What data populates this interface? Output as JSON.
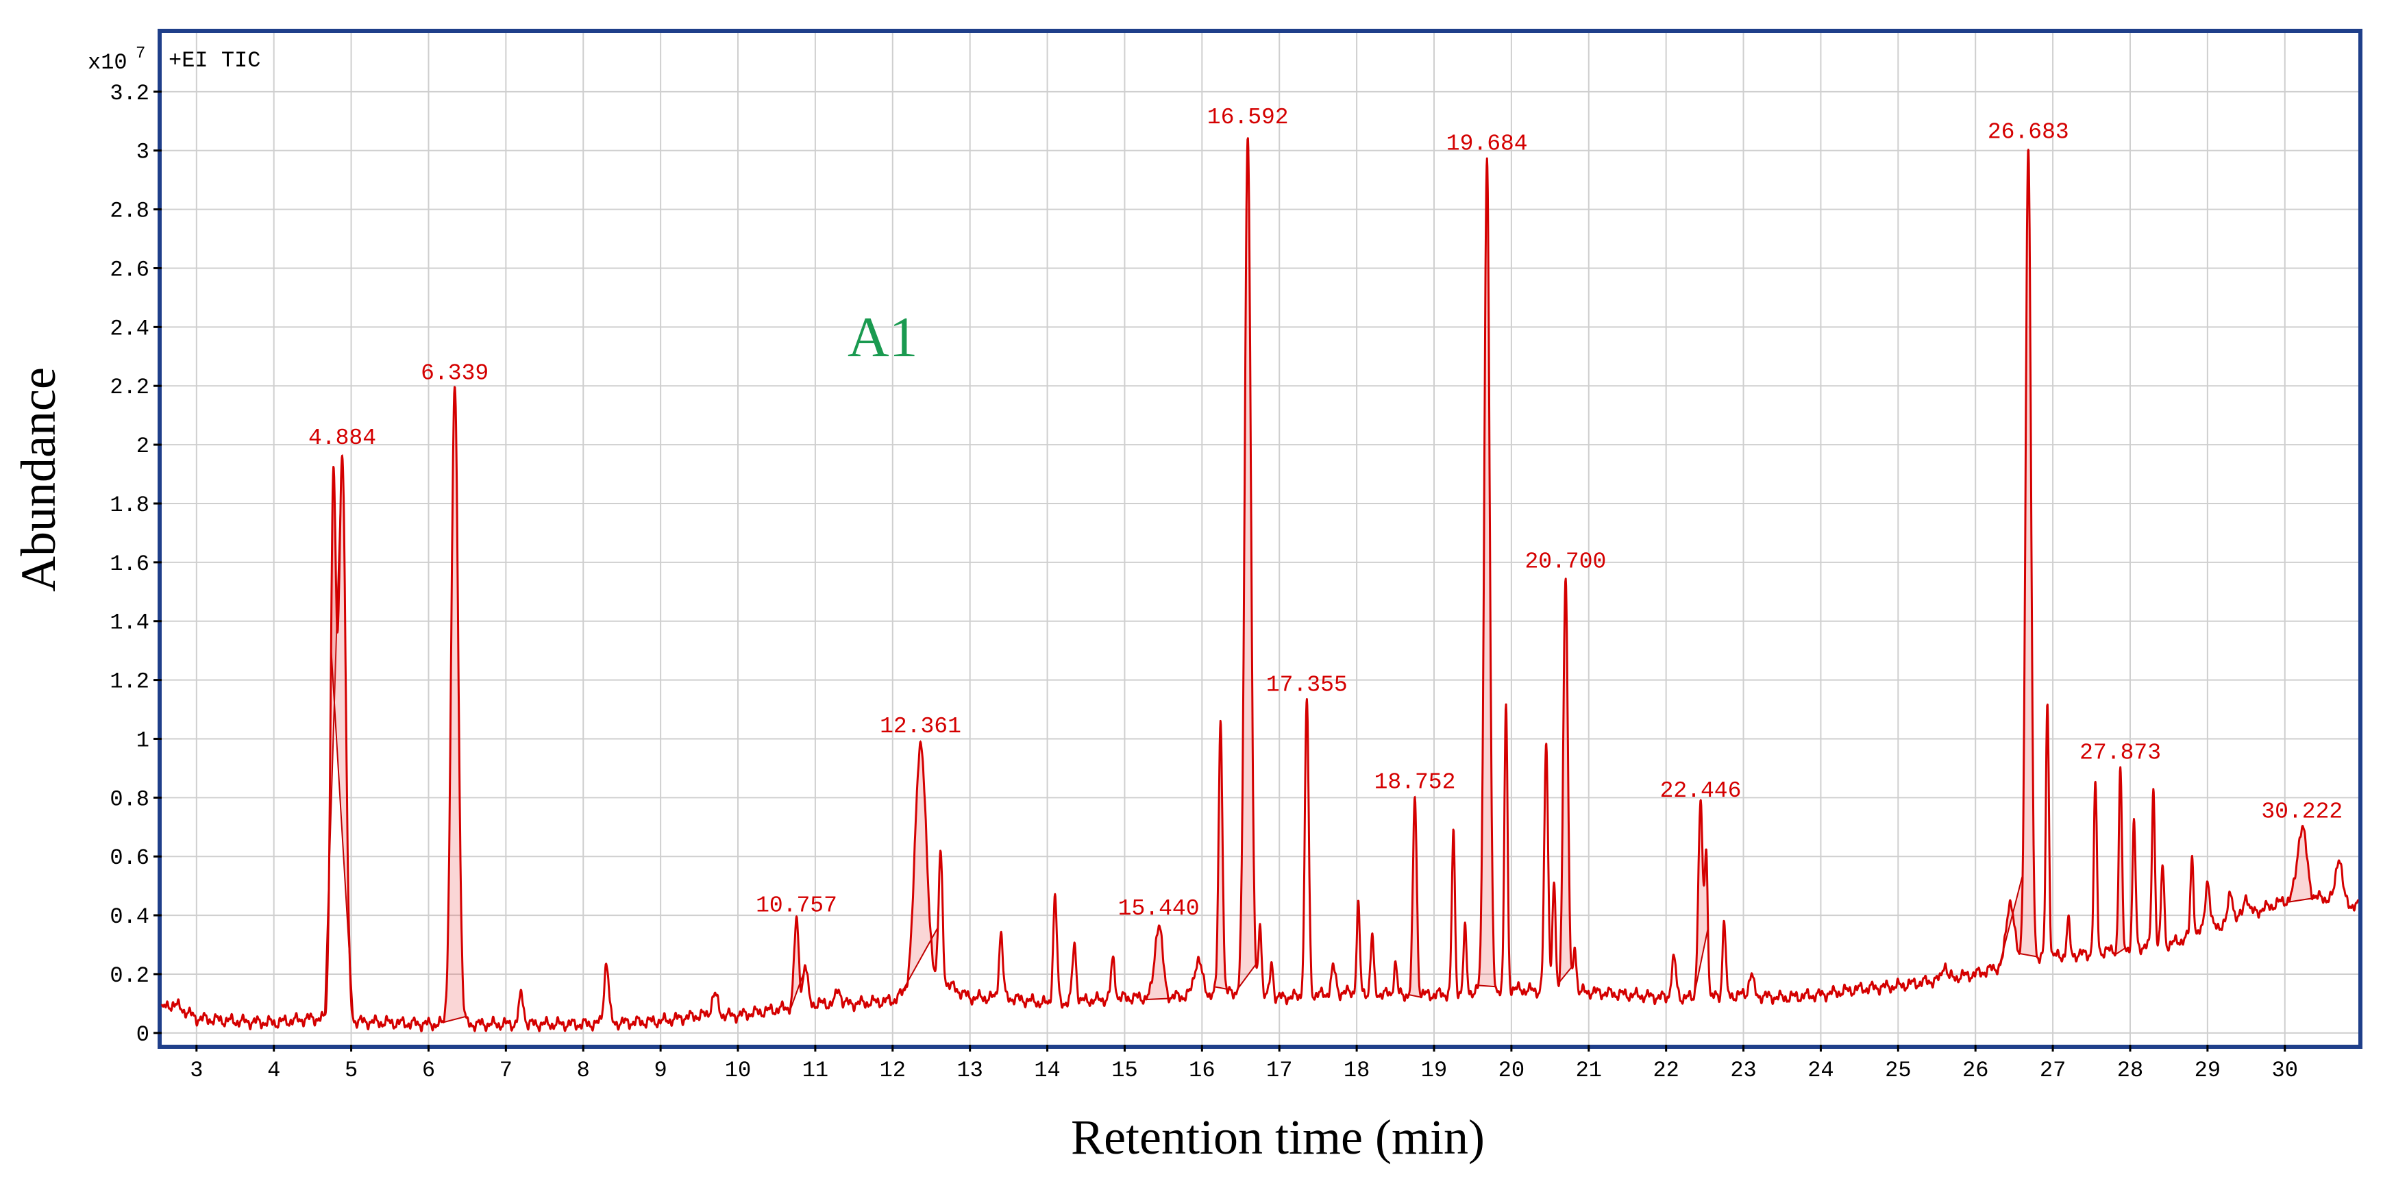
{
  "chart_data": {
    "type": "line",
    "title": "+EI  TIC",
    "exponent_label": "x10",
    "exponent_power": "7",
    "xlabel": "Retention time (min)",
    "ylabel": "Abundance",
    "annotation": "A1",
    "xlim": [
      2.55,
      30.95
    ],
    "ylim": [
      -0.04,
      3.4
    ],
    "x_ticks": [
      3,
      4,
      5,
      6,
      7,
      8,
      9,
      10,
      11,
      12,
      13,
      14,
      15,
      16,
      17,
      18,
      19,
      20,
      21,
      22,
      23,
      24,
      25,
      26,
      27,
      28,
      29,
      30
    ],
    "y_ticks": [
      0,
      0.2,
      0.4,
      0.6,
      0.8,
      1,
      1.2,
      1.4,
      1.6,
      1.8,
      2,
      2.2,
      2.4,
      2.6,
      2.8,
      3,
      3.2
    ],
    "y_tick_labels": [
      "0",
      "0.2",
      "0.4",
      "0.6",
      "0.8",
      "1",
      "1.2",
      "1.4",
      "1.6",
      "1.8",
      "2",
      "2.2",
      "2.4",
      "2.6",
      "2.8",
      "3",
      "3.2"
    ],
    "grid": true,
    "baseline": [
      [
        2.55,
        0.08
      ],
      [
        2.7,
        0.1
      ],
      [
        3.0,
        0.05
      ],
      [
        3.5,
        0.04
      ],
      [
        4.0,
        0.035
      ],
      [
        4.5,
        0.05
      ],
      [
        5.0,
        0.04
      ],
      [
        5.5,
        0.035
      ],
      [
        6.0,
        0.03
      ],
      [
        7.0,
        0.03
      ],
      [
        8.0,
        0.03
      ],
      [
        9.0,
        0.04
      ],
      [
        9.5,
        0.06
      ],
      [
        10.0,
        0.06
      ],
      [
        10.5,
        0.08
      ],
      [
        11.0,
        0.1
      ],
      [
        11.5,
        0.1
      ],
      [
        12.0,
        0.11
      ],
      [
        12.5,
        0.2
      ],
      [
        13.0,
        0.12
      ],
      [
        13.5,
        0.12
      ],
      [
        14.0,
        0.1
      ],
      [
        14.5,
        0.11
      ],
      [
        15.0,
        0.12
      ],
      [
        15.5,
        0.12
      ],
      [
        16.0,
        0.13
      ],
      [
        16.5,
        0.14
      ],
      [
        17.0,
        0.12
      ],
      [
        17.5,
        0.13
      ],
      [
        18.0,
        0.14
      ],
      [
        18.5,
        0.13
      ],
      [
        19.0,
        0.13
      ],
      [
        19.5,
        0.14
      ],
      [
        20.0,
        0.15
      ],
      [
        20.5,
        0.14
      ],
      [
        21.0,
        0.14
      ],
      [
        21.5,
        0.13
      ],
      [
        22.0,
        0.12
      ],
      [
        22.5,
        0.12
      ],
      [
        23.0,
        0.13
      ],
      [
        23.5,
        0.12
      ],
      [
        24.0,
        0.13
      ],
      [
        24.5,
        0.15
      ],
      [
        25.0,
        0.16
      ],
      [
        25.5,
        0.18
      ],
      [
        26.0,
        0.2
      ],
      [
        26.5,
        0.24
      ],
      [
        27.0,
        0.26
      ],
      [
        27.5,
        0.27
      ],
      [
        28.0,
        0.29
      ],
      [
        28.5,
        0.3
      ],
      [
        29.0,
        0.35
      ],
      [
        29.5,
        0.4
      ],
      [
        30.0,
        0.45
      ],
      [
        30.5,
        0.46
      ],
      [
        30.95,
        0.43
      ]
    ],
    "peaks": [
      {
        "rt": 4.769,
        "height": 1.83,
        "width": 0.035,
        "filled": true
      },
      {
        "rt": 4.884,
        "height": 1.97,
        "width": 0.045,
        "label": "4.884",
        "filled": true
      },
      {
        "rt": 6.339,
        "height": 2.19,
        "width": 0.045,
        "label": "6.339",
        "filled": true
      },
      {
        "rt": 7.2,
        "height": 0.13,
        "width": 0.03
      },
      {
        "rt": 8.3,
        "height": 0.24,
        "width": 0.03
      },
      {
        "rt": 9.7,
        "height": 0.13,
        "width": 0.04
      },
      {
        "rt": 10.757,
        "height": 0.38,
        "width": 0.03,
        "label": "10.757",
        "filled": true
      },
      {
        "rt": 10.87,
        "height": 0.23,
        "width": 0.03
      },
      {
        "rt": 11.3,
        "height": 0.15,
        "width": 0.03
      },
      {
        "rt": 12.361,
        "height": 0.99,
        "width": 0.07,
        "label": "12.361",
        "filled": true
      },
      {
        "rt": 12.62,
        "height": 0.61,
        "width": 0.025
      },
      {
        "rt": 13.4,
        "height": 0.34,
        "width": 0.025
      },
      {
        "rt": 14.1,
        "height": 0.46,
        "width": 0.025
      },
      {
        "rt": 14.35,
        "height": 0.3,
        "width": 0.025
      },
      {
        "rt": 14.85,
        "height": 0.25,
        "width": 0.025
      },
      {
        "rt": 15.44,
        "height": 0.37,
        "width": 0.05,
        "label": "15.440",
        "filled": true
      },
      {
        "rt": 15.95,
        "height": 0.25,
        "width": 0.05
      },
      {
        "rt": 16.24,
        "height": 1.06,
        "width": 0.025,
        "filled": true
      },
      {
        "rt": 16.592,
        "height": 3.06,
        "width": 0.04,
        "label": "16.592",
        "filled": true
      },
      {
        "rt": 16.75,
        "height": 0.38,
        "width": 0.02
      },
      {
        "rt": 16.9,
        "height": 0.24,
        "width": 0.02
      },
      {
        "rt": 17.355,
        "height": 1.13,
        "width": 0.025,
        "label": "17.355"
      },
      {
        "rt": 17.7,
        "height": 0.22,
        "width": 0.03
      },
      {
        "rt": 18.02,
        "height": 0.43,
        "width": 0.02
      },
      {
        "rt": 18.2,
        "height": 0.33,
        "width": 0.02
      },
      {
        "rt": 18.5,
        "height": 0.24,
        "width": 0.02
      },
      {
        "rt": 18.752,
        "height": 0.8,
        "width": 0.025,
        "label": "18.752",
        "filled": true
      },
      {
        "rt": 19.25,
        "height": 0.68,
        "width": 0.02
      },
      {
        "rt": 19.4,
        "height": 0.35,
        "width": 0.02
      },
      {
        "rt": 19.684,
        "height": 2.97,
        "width": 0.035,
        "label": "19.684",
        "filled": true
      },
      {
        "rt": 19.93,
        "height": 1.12,
        "width": 0.02
      },
      {
        "rt": 20.45,
        "height": 0.97,
        "width": 0.025
      },
      {
        "rt": 20.55,
        "height": 0.52,
        "width": 0.02
      },
      {
        "rt": 20.7,
        "height": 1.55,
        "width": 0.03,
        "label": "20.700",
        "filled": true
      },
      {
        "rt": 20.82,
        "height": 0.3,
        "width": 0.02
      },
      {
        "rt": 22.1,
        "height": 0.25,
        "width": 0.03
      },
      {
        "rt": 22.446,
        "height": 0.77,
        "width": 0.03,
        "label": "22.446",
        "filled": true
      },
      {
        "rt": 22.52,
        "height": 0.59,
        "width": 0.02
      },
      {
        "rt": 22.75,
        "height": 0.39,
        "width": 0.02
      },
      {
        "rt": 23.1,
        "height": 0.2,
        "width": 0.03
      },
      {
        "rt": 25.6,
        "height": 0.24,
        "width": 0.025
      },
      {
        "rt": 26.45,
        "height": 0.45,
        "width": 0.05,
        "filled": true
      },
      {
        "rt": 26.683,
        "height": 3.01,
        "width": 0.035,
        "label": "26.683",
        "filled": true
      },
      {
        "rt": 26.93,
        "height": 1.12,
        "width": 0.02
      },
      {
        "rt": 27.2,
        "height": 0.38,
        "width": 0.02
      },
      {
        "rt": 27.55,
        "height": 0.84,
        "width": 0.02
      },
      {
        "rt": 27.873,
        "height": 0.9,
        "width": 0.02,
        "label": "27.873",
        "filled": true
      },
      {
        "rt": 28.05,
        "height": 0.71,
        "width": 0.02
      },
      {
        "rt": 28.3,
        "height": 0.83,
        "width": 0.02
      },
      {
        "rt": 28.42,
        "height": 0.57,
        "width": 0.02
      },
      {
        "rt": 28.8,
        "height": 0.6,
        "width": 0.02
      },
      {
        "rt": 29.0,
        "height": 0.52,
        "width": 0.03
      },
      {
        "rt": 29.3,
        "height": 0.48,
        "width": 0.03
      },
      {
        "rt": 29.5,
        "height": 0.47,
        "width": 0.03
      },
      {
        "rt": 30.222,
        "height": 0.7,
        "width": 0.06,
        "label": "30.222",
        "filled": true
      },
      {
        "rt": 30.7,
        "height": 0.6,
        "width": 0.04
      }
    ]
  }
}
